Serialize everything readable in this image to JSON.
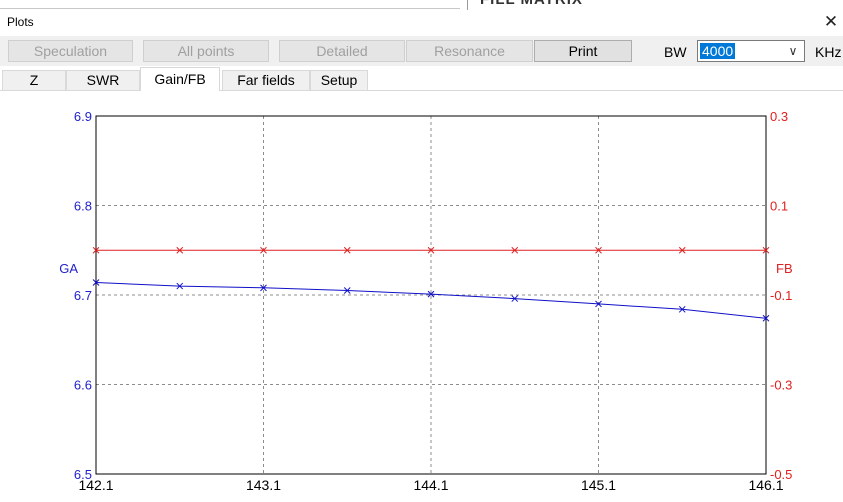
{
  "background": {
    "title": "FILL MATRIX"
  },
  "dialog": {
    "title": "Plots"
  },
  "toolbar": {
    "buttons": [
      {
        "label": "Speculation",
        "enabled": false
      },
      {
        "label": "All points",
        "enabled": false
      },
      {
        "label": "Detailed",
        "enabled": false
      },
      {
        "label": "Resonance",
        "enabled": false
      },
      {
        "label": "Print",
        "enabled": true
      }
    ],
    "bw_label": "BW",
    "bw_value": "4000",
    "khz_label": "KHz"
  },
  "tabs": [
    {
      "label": "Z",
      "selected": false
    },
    {
      "label": "SWR",
      "selected": false
    },
    {
      "label": "Gain/FB",
      "selected": true
    },
    {
      "label": "Far fields",
      "selected": false
    },
    {
      "label": "Setup",
      "selected": false
    }
  ],
  "colors": {
    "left_axis": "#1f1fcc",
    "right_axis": "#e01f1f",
    "ga_line": "#1010c8",
    "fb_line": "#e02020"
  },
  "chart_data": {
    "type": "line",
    "x": [
      142.1,
      142.6,
      143.1,
      143.6,
      144.1,
      144.6,
      145.1,
      145.6,
      146.1
    ],
    "xticks": [
      "142.1",
      "143.1",
      "144.1",
      "145.1",
      "146.1"
    ],
    "xlim": [
      142.1,
      146.1
    ],
    "y_left": {
      "label": "GA",
      "ticks": [
        "6.9",
        "6.8",
        "6.7",
        "6.6",
        "6.5"
      ],
      "lim": [
        6.5,
        6.9
      ]
    },
    "y_right": {
      "label": "FB",
      "ticks": [
        "0.3",
        "0.1",
        "-0.1",
        "-0.3",
        "-0.5"
      ],
      "lim": [
        -0.5,
        0.3
      ]
    },
    "series": [
      {
        "name": "GA",
        "axis": "left",
        "marker": "x",
        "values": [
          6.714,
          6.71,
          6.708,
          6.705,
          6.701,
          6.696,
          6.69,
          6.684,
          6.674
        ]
      },
      {
        "name": "FB",
        "axis": "right",
        "marker": "x",
        "values": [
          0.0,
          0.0,
          0.0,
          0.0,
          0.0,
          0.0,
          0.0,
          0.0,
          0.0
        ]
      }
    ],
    "grid": true
  }
}
